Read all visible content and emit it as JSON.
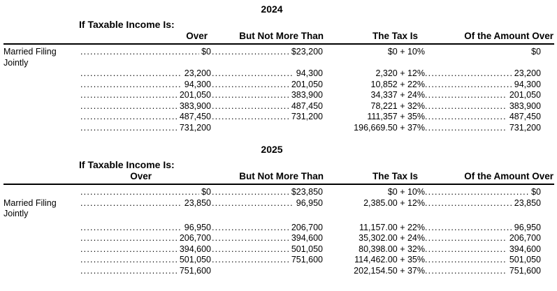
{
  "tables": [
    {
      "title": "2024",
      "subheader": "If Taxable Income Is:",
      "columns": {
        "over": "Over",
        "but_not_more_than": "But Not More Than",
        "the_tax_is": "The Tax Is",
        "of_the_amount_over": "Of the Amount Over"
      },
      "filing_status": "Married Filing Jointly",
      "rows": [
        {
          "label": "Married Filing",
          "over": "$0",
          "but_not_more_than": "$23,200",
          "the_tax_is": "$0 + 10%",
          "of_the_amount_over": "$0",
          "leaders": {
            "over": true,
            "bnmt": true,
            "amt": false
          }
        },
        {
          "label": "Jointly",
          "over": "",
          "but_not_more_than": "",
          "the_tax_is": "",
          "of_the_amount_over": "",
          "leaders": {}
        },
        {
          "label": "",
          "over": "23,200",
          "but_not_more_than": "94,300",
          "the_tax_is": "2,320 + 12%",
          "of_the_amount_over": "23,200",
          "leaders": {
            "over": true,
            "bnmt": true,
            "amt": true
          }
        },
        {
          "label": "",
          "over": "94,300",
          "but_not_more_than": "201,050",
          "the_tax_is": "10,852 + 22%",
          "of_the_amount_over": "94,300",
          "leaders": {
            "over": true,
            "bnmt": true,
            "amt": true
          }
        },
        {
          "label": "",
          "over": "201,050",
          "but_not_more_than": "383,900",
          "the_tax_is": "34,337 + 24%",
          "of_the_amount_over": "201,050",
          "leaders": {
            "over": true,
            "bnmt": true,
            "amt": true
          }
        },
        {
          "label": "",
          "over": "383,900",
          "but_not_more_than": "487,450",
          "the_tax_is": "78,221 + 32%",
          "of_the_amount_over": "383,900",
          "leaders": {
            "over": true,
            "bnmt": true,
            "amt": true
          }
        },
        {
          "label": "",
          "over": "487,450",
          "but_not_more_than": "731,200",
          "the_tax_is": "111,357 + 35%",
          "of_the_amount_over": "487,450",
          "leaders": {
            "over": true,
            "bnmt": true,
            "amt": true
          }
        },
        {
          "label": "",
          "over": "731,200",
          "but_not_more_than": "",
          "the_tax_is": "196,669.50 + 37%",
          "of_the_amount_over": "731,200",
          "leaders": {
            "over": true,
            "bnmt": false,
            "amt": true
          }
        }
      ]
    },
    {
      "title": "2025",
      "subheader": "If Taxable Income Is:",
      "columns": {
        "over": "Over",
        "but_not_more_than": "But Not More Than",
        "the_tax_is": "The Tax Is",
        "of_the_amount_over": "Of the Amount Over"
      },
      "filing_status": "Married Filing Jointly",
      "rows": [
        {
          "label": "",
          "over": "$0",
          "but_not_more_than": "$23,850",
          "the_tax_is": "$0 + 10%",
          "of_the_amount_over": "$0",
          "leaders": {
            "over": true,
            "bnmt": true,
            "amt": true
          }
        },
        {
          "label": "Married Filing",
          "over": "23,850",
          "but_not_more_than": "96,950",
          "the_tax_is": "2,385.00 + 12%",
          "of_the_amount_over": "23,850",
          "leaders": {
            "over": true,
            "bnmt": true,
            "amt": true
          }
        },
        {
          "label": "Jointly",
          "over": "",
          "but_not_more_than": "",
          "the_tax_is": "",
          "of_the_amount_over": "",
          "leaders": {},
          "spacer_after": true
        },
        {
          "label": "",
          "over": "96,950",
          "but_not_more_than": "206,700",
          "the_tax_is": "11,157.00 + 22%",
          "of_the_amount_over": "96,950",
          "leaders": {
            "over": true,
            "bnmt": true,
            "amt": true
          }
        },
        {
          "label": "",
          "over": "206,700",
          "but_not_more_than": "394,600",
          "the_tax_is": "35,302.00 + 24%",
          "of_the_amount_over": "206,700",
          "leaders": {
            "over": true,
            "bnmt": true,
            "amt": true
          }
        },
        {
          "label": "",
          "over": "394,600",
          "but_not_more_than": "501,050",
          "the_tax_is": "80,398.00 + 32%",
          "of_the_amount_over": "394,600",
          "leaders": {
            "over": true,
            "bnmt": true,
            "amt": true
          }
        },
        {
          "label": "",
          "over": "501,050",
          "but_not_more_than": "751,600",
          "the_tax_is": "114,462.00 + 35%",
          "of_the_amount_over": "501,050",
          "leaders": {
            "over": true,
            "bnmt": true,
            "amt": true
          }
        },
        {
          "label": "",
          "over": "751,600",
          "but_not_more_than": "",
          "the_tax_is": "202,154.50 + 37%",
          "of_the_amount_over": "751,600",
          "leaders": {
            "over": true,
            "bnmt": false,
            "amt": true
          }
        }
      ]
    }
  ]
}
